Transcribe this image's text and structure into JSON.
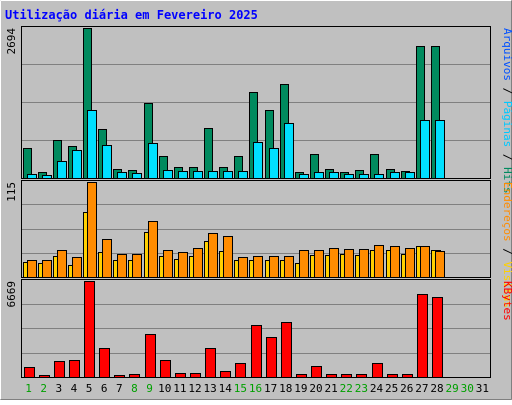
{
  "chart_data": {
    "type": "bar",
    "title": "Utilização diária em Fevereiro 2025",
    "categories": [
      "1",
      "2",
      "3",
      "4",
      "5",
      "6",
      "7",
      "8",
      "9",
      "10",
      "11",
      "12",
      "13",
      "14",
      "15",
      "16",
      "17",
      "18",
      "19",
      "20",
      "21",
      "22",
      "23",
      "24",
      "25",
      "26",
      "27",
      "28",
      "29",
      "30",
      "31"
    ],
    "weekend_days": [
      "1",
      "2",
      "8",
      "9",
      "15",
      "16",
      "22",
      "23",
      "29",
      "30"
    ],
    "panels": [
      {
        "id": "hits",
        "ymax_label": "2694",
        "ymax": 2694,
        "right_labels": [
          {
            "text": "Hits",
            "color": "#008a5e"
          },
          {
            "text": " / ",
            "color": "#000000"
          },
          {
            "text": "Páginas",
            "color": "#00c8ff"
          },
          {
            "text": " / ",
            "color": "#000000"
          },
          {
            "text": "Arquivos",
            "color": "#0050ff"
          }
        ],
        "series": [
          {
            "name": "Hits",
            "color": "#008a5e",
            "values": [
              530,
              100,
              680,
              570,
              2694,
              880,
              160,
              140,
              1340,
              400,
              200,
              190,
              900,
              190,
              400,
              1550,
              1230,
              1690,
              100,
              440,
              170,
              100,
              150,
              440,
              170,
              120,
              2370,
              2370,
              0,
              0,
              0
            ]
          },
          {
            "name": "Arquivos",
            "color": "#0050ff",
            "values": [
              0,
              0,
              0,
              0,
              0,
              0,
              0,
              0,
              0,
              0,
              0,
              0,
              0,
              0,
              0,
              0,
              0,
              0,
              0,
              0,
              0,
              0,
              0,
              0,
              0,
              0,
              0,
              0,
              0,
              0,
              0
            ]
          },
          {
            "name": "Páginas",
            "color": "#00e0ff",
            "values": [
              70,
              60,
              310,
              500,
              1220,
              600,
              110,
              90,
              630,
              150,
              120,
              120,
              130,
              120,
              120,
              650,
              530,
              990,
              70,
              110,
              100,
              70,
              70,
              70,
              110,
              100,
              1050,
              1040,
              0,
              0,
              0
            ]
          }
        ]
      },
      {
        "id": "visits",
        "ymax_label": "115",
        "ymax": 115,
        "right_labels": [
          {
            "text": "Visitas",
            "color": "#ffd000"
          },
          {
            "text": " / ",
            "color": "#000000"
          },
          {
            "text": "Endereços",
            "color": "#ff8c00"
          }
        ],
        "series": [
          {
            "name": "Visitas",
            "color": "#ffd000",
            "values": [
              18,
              17,
              25,
              15,
              79,
              30,
              20,
              20,
              54,
              26,
              22,
              26,
              43,
              31,
              20,
              20,
              20,
              20,
              17,
              27,
              27,
              28,
              27,
              33,
              33,
              28,
              37,
              33,
              0,
              0,
              0
            ]
          },
          {
            "name": "Endereços",
            "color": "#ff8c00",
            "values": [
              20,
              20,
              33,
              24,
              115,
              46,
              28,
              28,
              68,
              33,
              30,
              35,
              53,
              50,
              24,
              25,
              26,
              26,
              33,
              33,
              35,
              34,
              34,
              39,
              37,
              35,
              38,
              32,
              0,
              0,
              0
            ]
          }
        ]
      },
      {
        "id": "kbytes",
        "ymax_label": "6669",
        "ymax": 6669,
        "right_labels": [
          {
            "text": "KBytes",
            "color": "#ff0000"
          }
        ],
        "series": [
          {
            "name": "KBytes",
            "color": "#ff0000",
            "values": [
              700,
              140,
              1120,
              1210,
              6669,
              1980,
              170,
              180,
              2960,
              1210,
              270,
              270,
              1990,
              410,
              940,
              3640,
              2790,
              3820,
              200,
              760,
              200,
              200,
              230,
              980,
              200,
              200,
              5750,
              5570,
              0,
              0,
              0
            ]
          }
        ]
      }
    ]
  }
}
